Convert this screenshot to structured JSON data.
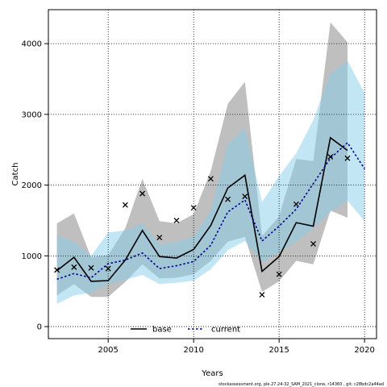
{
  "chart_data": {
    "type": "line",
    "xlabel": "Years",
    "ylabel": "Catch",
    "xlim": [
      2001.5,
      2020.7
    ],
    "ylim": [
      -170,
      4480
    ],
    "xticks": [
      2005,
      2010,
      2015,
      2020
    ],
    "yticks": [
      0,
      1000,
      2000,
      3000,
      4000
    ],
    "grid": true,
    "legend_position": "bottom",
    "footnote": "stockassessment.org, ple.27.24-32_SAM_2021_clone, r14360 , git: c28bdc2a44ad",
    "x": [
      2002,
      2003,
      2004,
      2005,
      2006,
      2007,
      2008,
      2009,
      2010,
      2011,
      2012,
      2013,
      2014,
      2015,
      2016,
      2017,
      2018,
      2019,
      2020
    ],
    "series": [
      {
        "name": "base",
        "color": "#000000",
        "line_style": "solid",
        "band_color": "#a9a9a9",
        "values": [
          790,
          980,
          640,
          650,
          940,
          1360,
          990,
          970,
          1090,
          1430,
          1960,
          2140,
          780,
          990,
          1470,
          1420,
          2670,
          2490,
          null
        ],
        "lower": [
          440,
          600,
          420,
          420,
          630,
          880,
          680,
          690,
          740,
          930,
          1200,
          1270,
          490,
          640,
          930,
          880,
          1640,
          1540,
          null
        ],
        "upper": [
          1460,
          1600,
          980,
          1010,
          1390,
          2090,
          1490,
          1460,
          1590,
          2200,
          3150,
          3460,
          1280,
          1560,
          2370,
          2340,
          4300,
          4020,
          null
        ]
      },
      {
        "name": "current",
        "color": "#00008b",
        "line_style": "dotted",
        "band_color": "#87ceeb",
        "values": [
          670,
          750,
          690,
          890,
          940,
          1040,
          820,
          860,
          920,
          1150,
          1620,
          1790,
          1210,
          1420,
          1660,
          2020,
          2380,
          2600,
          2230
        ],
        "lower": [
          320,
          440,
          480,
          600,
          660,
          730,
          600,
          620,
          650,
          810,
          1080,
          1210,
          910,
          1050,
          1200,
          1390,
          1620,
          1780,
          1490
        ],
        "upper": [
          1290,
          1200,
          1000,
          1330,
          1360,
          1460,
          1160,
          1200,
          1270,
          1640,
          2580,
          2810,
          1760,
          2130,
          2450,
          2920,
          3580,
          3760,
          3300
        ]
      }
    ],
    "observed": {
      "marker": "x",
      "x": [
        2002,
        2003,
        2004,
        2005,
        2006,
        2007,
        2008,
        2009,
        2010,
        2011,
        2012,
        2013,
        2014,
        2015,
        2016,
        2017,
        2018,
        2019
      ],
      "y": [
        800,
        840,
        830,
        820,
        1720,
        1880,
        1260,
        1500,
        1680,
        2090,
        1800,
        1840,
        450,
        740,
        1730,
        1170,
        2400,
        2380
      ]
    }
  }
}
